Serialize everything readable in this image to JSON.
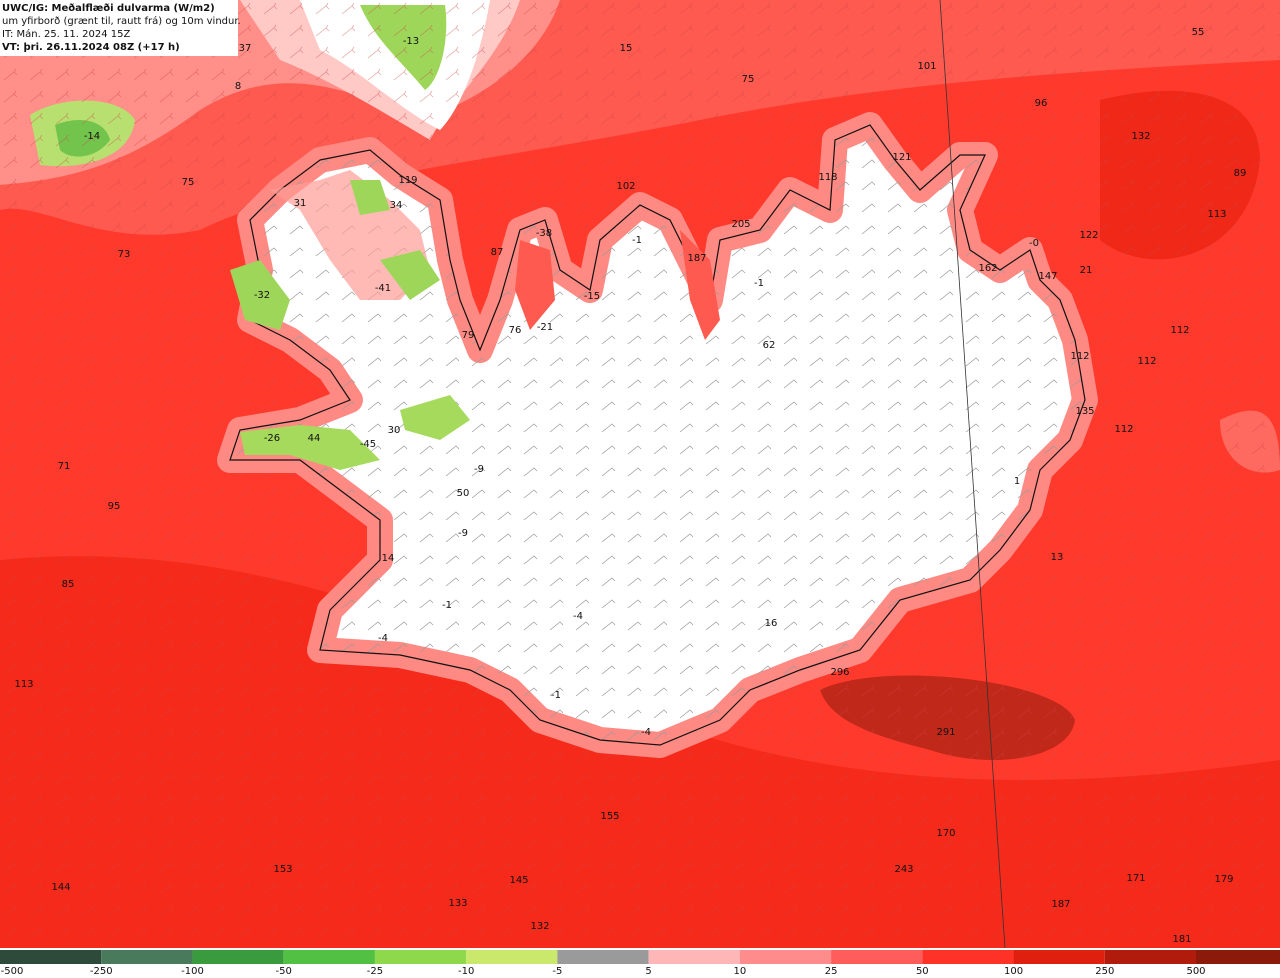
{
  "header": {
    "lines": [
      "UWC/IG: Meðalflæði dulvarma (W/m2)",
      "um yfirborð (grænt til, rautt frá) og 10m vindur.",
      "IT: Mán. 25. 11. 2024 15Z",
      "VT: þri. 26.11.2024 08Z (+17 h)"
    ]
  },
  "map": {
    "labels": [
      "37",
      "-13",
      "15",
      "55",
      "8",
      "101",
      "75",
      "96",
      "-14",
      "132",
      "121",
      "119",
      "118",
      "102",
      "75",
      "89",
      "31",
      "34",
      "205",
      "113",
      "-38",
      "-1",
      "-0",
      "122",
      "87",
      "187",
      "73",
      "162",
      "21",
      "147",
      "-1",
      "-41",
      "-15",
      "-32",
      "79",
      "76",
      "-21",
      "112",
      "62",
      "112",
      "112",
      "135",
      "30",
      "-26",
      "44",
      "-45",
      "112",
      "71",
      "-9",
      "1",
      "50",
      "95",
      "-9",
      "13",
      "14",
      "85",
      "-1",
      "-4",
      "16",
      "-4",
      "296",
      "113",
      "-1",
      "291",
      "-4",
      "155",
      "170",
      "153",
      "243",
      "144",
      "145",
      "171",
      "179",
      "133",
      "187",
      "132",
      "181"
    ]
  },
  "colorbar": {
    "ticks": [
      "-500",
      "-250",
      "-100",
      "-50",
      "-25",
      "-10",
      "-5",
      "5",
      "10",
      "25",
      "50",
      "100",
      "250",
      "500"
    ],
    "colors": [
      "#2e4a3a",
      "#4a7a5c",
      "#3a9a3e",
      "#52c043",
      "#8ed84c",
      "#c9e86c",
      "#9a9a9a",
      "#ffb6b6",
      "#ff8c8c",
      "#ff5c5c",
      "#ff3228",
      "#e0200f",
      "#b01b0b",
      "#8c1a0a"
    ]
  }
}
